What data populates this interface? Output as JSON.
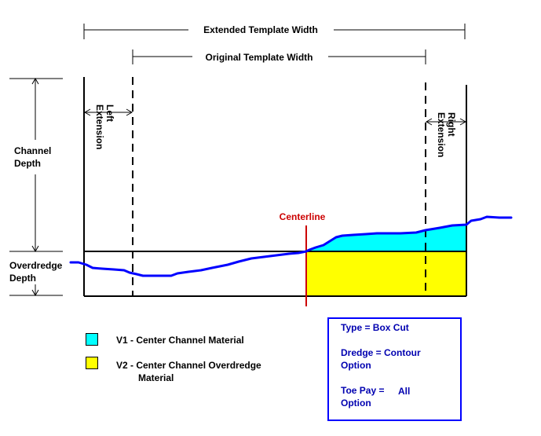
{
  "labels": {
    "extended_width": "Extended Template Width",
    "original_width": "Original Template Width",
    "left_extension": [
      "Left",
      "Extension"
    ],
    "right_extension": [
      "Right",
      "Extension"
    ],
    "channel_depth": [
      "Channel",
      "Depth"
    ],
    "overdredge_depth": [
      "Overdredge",
      "Depth"
    ],
    "centerline": "Centerline"
  },
  "legend": {
    "v1": {
      "label": "V1 - Center Channel Material",
      "color": "#00ffff"
    },
    "v2": {
      "label_line1": "V2 - Center Channel Overdredge",
      "label_line2": "Material",
      "color": "#ffff00"
    }
  },
  "info": {
    "type_line": "Type = Box Cut",
    "dredge_line1": "Dredge = Contour",
    "dredge_line2": "Option",
    "toe_label": "Toe Pay =",
    "toe_value": "All",
    "toe_line2": "Option"
  },
  "colors": {
    "profile": "#0000ff",
    "centerline": "#cc0000",
    "info_text": "#0000b0"
  }
}
